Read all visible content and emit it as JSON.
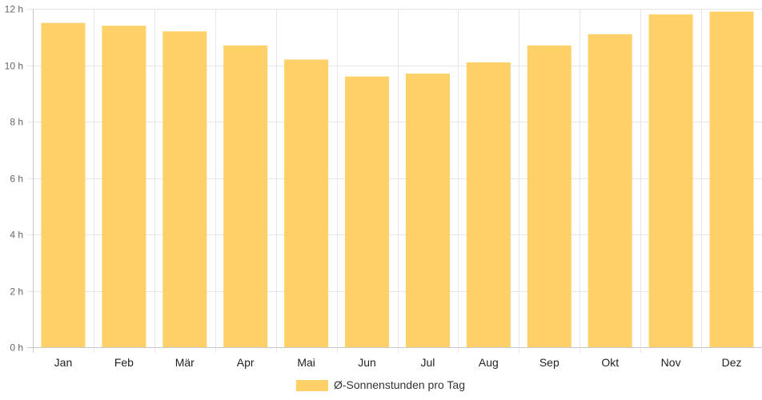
{
  "chart_data": {
    "type": "bar",
    "categories": [
      "Jan",
      "Feb",
      "Mär",
      "Apr",
      "Mai",
      "Jun",
      "Jul",
      "Aug",
      "Sep",
      "Okt",
      "Nov",
      "Dez"
    ],
    "series": [
      {
        "name": "Ø-Sonnenstunden pro Tag",
        "values": [
          11.5,
          11.4,
          11.2,
          10.7,
          10.2,
          9.6,
          9.7,
          10.1,
          10.7,
          11.1,
          11.8,
          11.9
        ],
        "color": "#fdd068"
      }
    ],
    "ylim": [
      0,
      12
    ],
    "yticks": [
      0,
      2,
      4,
      6,
      8,
      10,
      12
    ],
    "ytick_labels": [
      "0 h",
      "2 h",
      "4 h",
      "6 h",
      "8 h",
      "10 h",
      "12 h"
    ],
    "grid": true,
    "legend": "bottom-center"
  }
}
